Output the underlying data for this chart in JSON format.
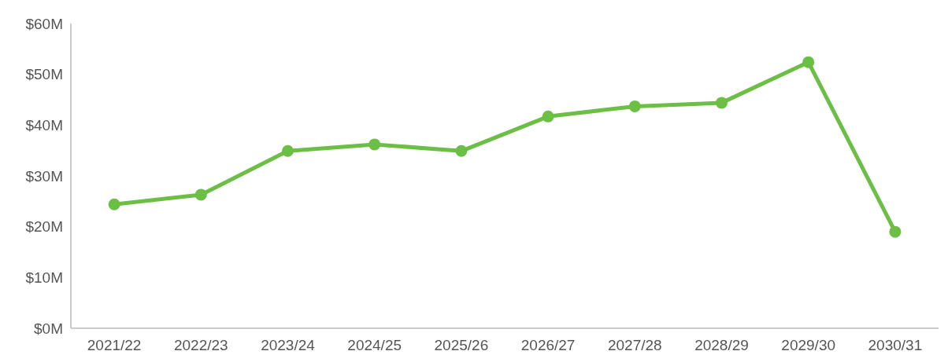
{
  "chart_data": {
    "type": "line",
    "categories": [
      "2021/22",
      "2022/23",
      "2023/24",
      "2024/25",
      "2025/26",
      "2026/27",
      "2027/28",
      "2028/29",
      "2029/30",
      "2030/31"
    ],
    "series": [
      {
        "color": "#6cbf45",
        "values": [
          24.4,
          26.3,
          34.9,
          36.2,
          34.9,
          41.7,
          43.7,
          44.4,
          52.4,
          19.0
        ]
      }
    ],
    "ylim": [
      0,
      60
    ],
    "yticks": [
      {
        "value": 0,
        "label": "$0M"
      },
      {
        "value": 10,
        "label": "$10M"
      },
      {
        "value": 20,
        "label": "$20M"
      },
      {
        "value": 30,
        "label": "$30M"
      },
      {
        "value": 40,
        "label": "$40M"
      },
      {
        "value": 50,
        "label": "$50M"
      },
      {
        "value": 60,
        "label": "$60M"
      }
    ],
    "grid": false,
    "marker": "circle",
    "line_style": "solid"
  }
}
